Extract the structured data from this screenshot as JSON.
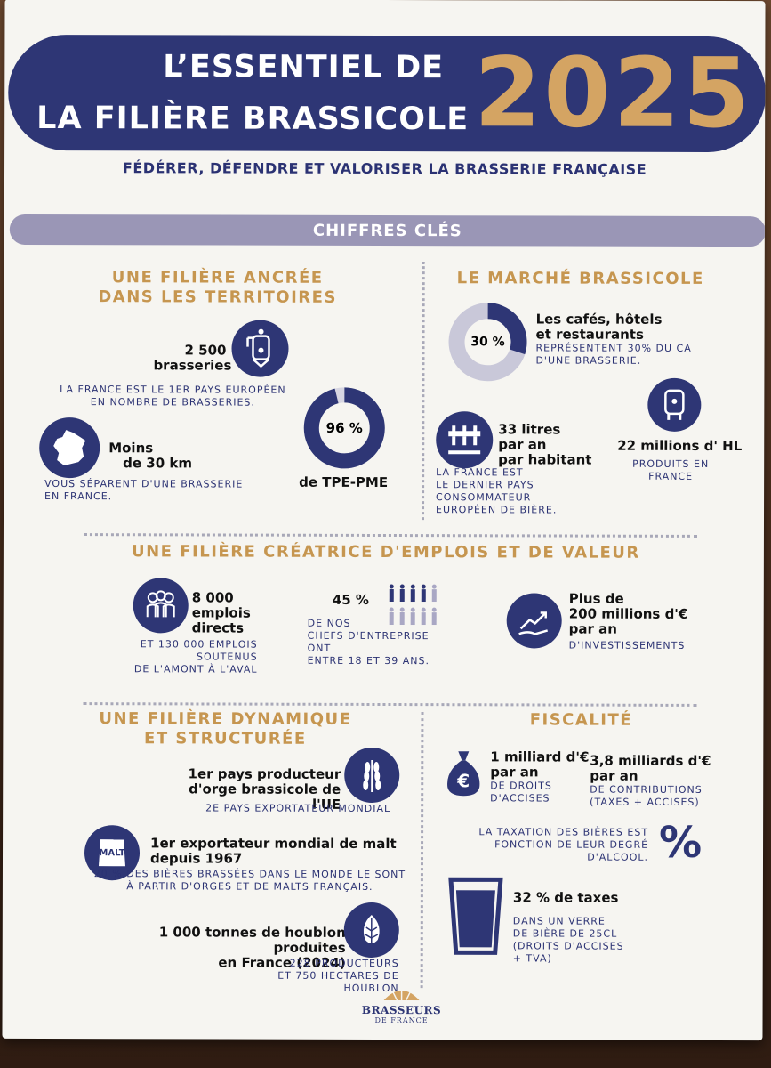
{
  "header": {
    "title_line1": "L’ESSENTIEL DE",
    "title_line2": "LA FILIÈRE BRASSICOLE",
    "year": "2025",
    "subtitle": "FÉDÉRER, DÉFENDRE ET VALORISER LA BRASSERIE FRANÇAISE"
  },
  "key_figures_label": "CHIFFRES CLÉS",
  "territoires": {
    "title_line1": "UNE FILIÈRE ANCRÉE",
    "title_line2": "DANS LES TERRITOIRES",
    "breweries_value": "2 500",
    "breweries_label": "brasseries",
    "breweries_note_line1": "LA FRANCE EST LE 1ER PAYS EUROPÉEN",
    "breweries_note_line2": "EN NOMBRE DE BRASSERIES.",
    "distance_line1": "Moins",
    "distance_line2": "de 30 km",
    "distance_note_line1": "VOUS SÉPARENT D'UNE BRASSERIE",
    "distance_note_line2": "EN FRANCE.",
    "tpe_value": "96 %",
    "tpe_fraction": 0.96,
    "tpe_label": "de TPE-PME"
  },
  "marche": {
    "title": "LE MARCHÉ BRASSICOLE",
    "chr_value": "30 %",
    "chr_fraction": 0.3,
    "chr_line1": "Les cafés, hôtels",
    "chr_line2": "et restaurants",
    "chr_note_line1": "REPRÉSENTENT 30% DU CA",
    "chr_note_line2": "D'UNE BRASSERIE.",
    "litres_line1": "33 litres",
    "litres_line2": "par an",
    "litres_line3": "par habitant",
    "litres_note_line1": "LA FRANCE EST",
    "litres_note_line2": "LE DERNIER PAYS",
    "litres_note_line3": "CONSOMMATEUR",
    "litres_note_line4": "EUROPÉEN DE BIÈRE.",
    "hl_value": "22 millions d' HL",
    "hl_note_line1": "PRODUITS EN",
    "hl_note_line2": "FRANCE"
  },
  "emplois": {
    "title": "UNE FILIÈRE CRÉATRICE D'EMPLOIS ET DE VALEUR",
    "jobs_line1": "8 000",
    "jobs_line2": "emplois",
    "jobs_line3": "directs",
    "jobs_note_line1": "ET 130 000 EMPLOIS",
    "jobs_note_line2": "SOUTENUS",
    "jobs_note_line3": "DE L'AMONT À L'AVAL",
    "chefs_value": "45 %",
    "chefs_note_line1": "DE NOS",
    "chefs_note_line2": "CHEFS D'ENTREPRISE",
    "chefs_note_line3": "ONT",
    "chefs_note_line4": "ENTRE 18 ET 39 ANS.",
    "invest_line1": "Plus de",
    "invest_line2": "200 millions d'€",
    "invest_line3": "par an",
    "invest_note": "D'INVESTISSEMENTS"
  },
  "dynamique": {
    "title_line1": "UNE FILIÈRE DYNAMIQUE",
    "title_line2": "ET STRUCTURÉE",
    "orge_line1": "1er pays producteur",
    "orge_line2": "d'orge brassicole de l'UE",
    "orge_note": "2E PAYS EXPORTATEUR MONDIAL",
    "malt_line1": "1er exportateur mondial de malt",
    "malt_line2": "depuis 1967",
    "malt_icon_text": "MALT",
    "malt_note_line1": "20 % DES BIÈRES BRASSÉES DANS LE MONDE LE SONT",
    "malt_note_line2": "À PARTIR D'ORGES ET DE MALTS FRANÇAIS.",
    "houblon_line1": "1 000 tonnes de houblon produites",
    "houblon_line2": "en France (2024)",
    "houblon_note_line1": "228 PRODUCTEURS",
    "houblon_note_line2": "ET 750 HECTARES DE HOUBLON"
  },
  "fiscalite": {
    "title": "FISCALITÉ",
    "accises_line1": "1 milliard d'€",
    "accises_line2": "par an",
    "accises_note_line1": "DE DROITS",
    "accises_note_line2": "D'ACCISES",
    "contrib_line1": "3,8 milliards d'€",
    "contrib_line2": "par an",
    "contrib_note_line1": "DE CONTRIBUTIONS",
    "contrib_note_line2": "(TAXES + ACCISES)",
    "taxation_line1": "LA TAXATION DES BIÈRES EST",
    "taxation_line2": "FONCTION DE LEUR DEGRÉ",
    "taxation_line3": "D'ALCOOL.",
    "percent_symbol": "%",
    "verre_value": "32 % de taxes",
    "verre_note_line1": "DANS UN VERRE",
    "verre_note_line2": "DE BIÈRE DE 25CL",
    "verre_note_line3": "(DROITS D'ACCISES",
    "verre_note_line4": "+ TVA)"
  },
  "logo": {
    "name_line1": "BRASSEURS",
    "name_line2": "DE FRANCE"
  },
  "colors": {
    "navy": "#2e3675",
    "gold": "#c69650",
    "lavender": "#9a96b6"
  }
}
